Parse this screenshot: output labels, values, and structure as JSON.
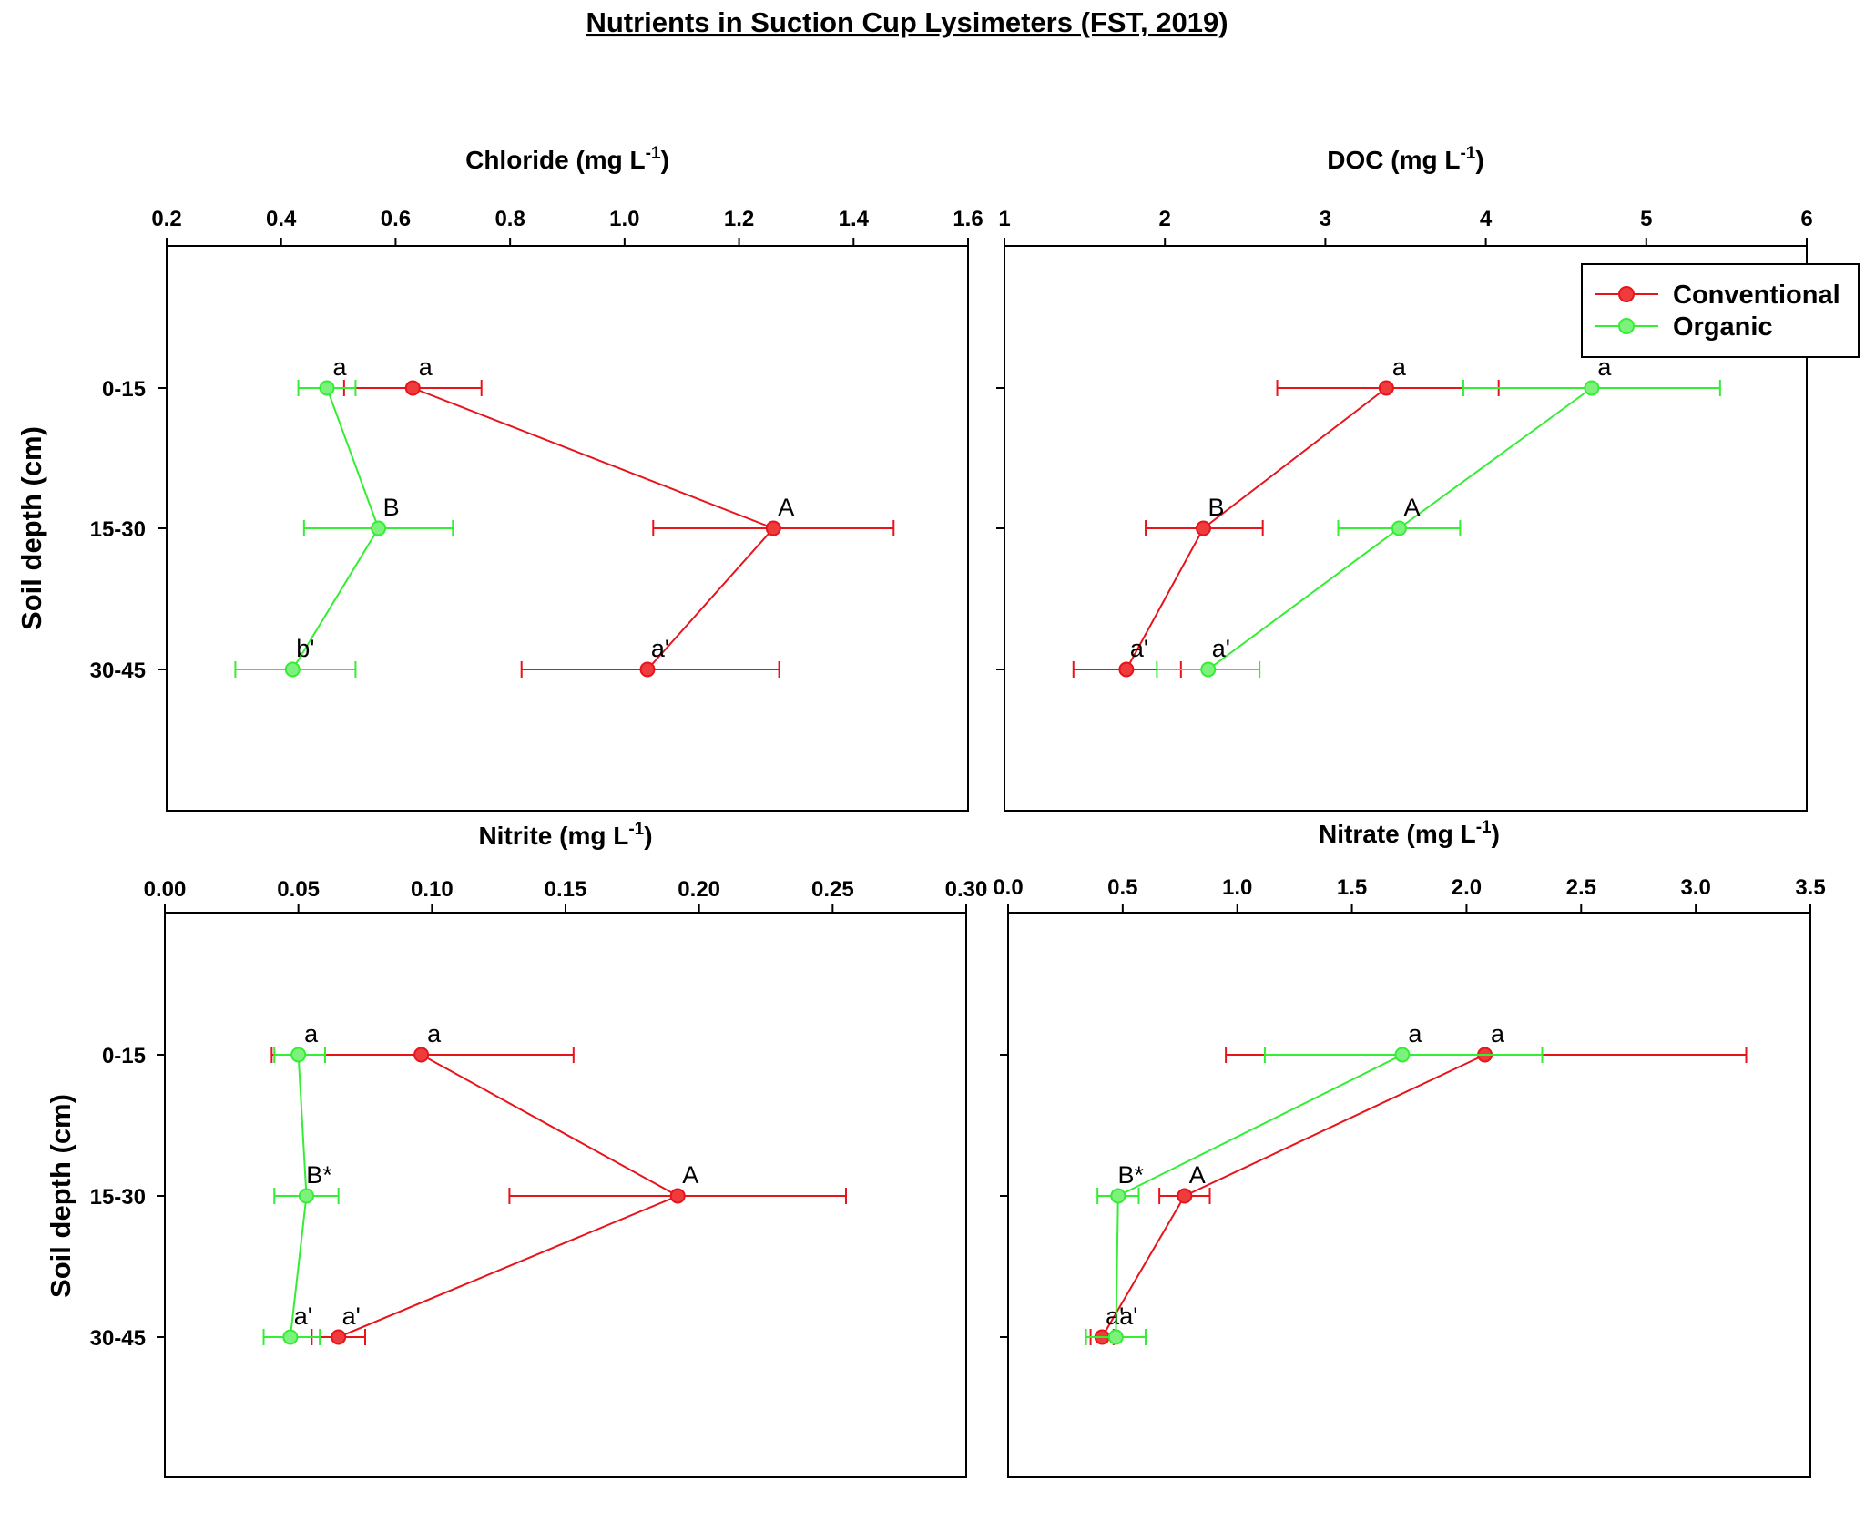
{
  "title": "Nutrients in Suction Cup Lysimeters (FST, 2019)",
  "colors": {
    "conventional": "#e8141c",
    "organic": "#33ee33",
    "conventional_fill": "#ee3b3b",
    "organic_fill": "#7cf27c"
  },
  "legend": {
    "placement": "top-right of DOC panel",
    "entries": [
      "Conventional",
      "Organic"
    ]
  },
  "chart_data": [
    {
      "type": "line",
      "xlabel": "Chloride (mg L-1)",
      "xlabel_main": "Chloride (mg L",
      "xlabel_sup": "-1",
      "xlabel_tail": ")",
      "ylabel": "Soil depth (cm)",
      "categories": [
        "0-15",
        "15-30",
        "30-45"
      ],
      "xlim": [
        0.2,
        1.6
      ],
      "xticks": [
        "0.2",
        "0.4",
        "0.6",
        "0.8",
        "1.0",
        "1.2",
        "1.4",
        "1.6"
      ],
      "series": [
        {
          "name": "Conventional",
          "values": [
            0.63,
            1.26,
            1.04
          ],
          "err_low": [
            0.51,
            1.05,
            0.82
          ],
          "err_high": [
            0.75,
            1.47,
            1.27
          ],
          "labels": [
            "a",
            "A",
            "a'"
          ]
        },
        {
          "name": "Organic",
          "values": [
            0.48,
            0.57,
            0.42
          ],
          "err_low": [
            0.43,
            0.44,
            0.32
          ],
          "err_high": [
            0.53,
            0.7,
            0.53
          ],
          "labels": [
            "a",
            "B",
            "b'"
          ]
        }
      ]
    },
    {
      "type": "line",
      "xlabel": "DOC (mg L-1)",
      "xlabel_main": "DOC (mg L",
      "xlabel_sup": "-1",
      "xlabel_tail": ")",
      "ylabel": "",
      "categories": [
        "0-15",
        "15-30",
        "30-45"
      ],
      "xlim": [
        1,
        6
      ],
      "xticks": [
        "1",
        "2",
        "3",
        "4",
        "5",
        "6"
      ],
      "series": [
        {
          "name": "Conventional",
          "values": [
            3.38,
            2.24,
            1.76
          ],
          "err_low": [
            2.7,
            1.88,
            1.43
          ],
          "err_high": [
            4.08,
            2.61,
            2.1
          ],
          "labels": [
            "a",
            "B",
            "a'"
          ]
        },
        {
          "name": "Organic",
          "values": [
            4.66,
            3.46,
            2.27
          ],
          "err_low": [
            3.86,
            3.08,
            1.95
          ],
          "err_high": [
            5.46,
            3.84,
            2.59
          ],
          "labels": [
            "a",
            "A",
            "a'"
          ]
        }
      ]
    },
    {
      "type": "line",
      "xlabel": "Nitrite (mg L-1)",
      "xlabel_main": "Nitrite (mg L",
      "xlabel_sup": "-1",
      "xlabel_tail": ")",
      "ylabel": "Soil depth (cm)",
      "categories": [
        "0-15",
        "15-30",
        "30-45"
      ],
      "xlim": [
        0.0,
        0.3
      ],
      "xticks": [
        "0.00",
        "0.05",
        "0.10",
        "0.15",
        "0.20",
        "0.25",
        "0.30"
      ],
      "series": [
        {
          "name": "Conventional",
          "values": [
            0.096,
            0.192,
            0.065
          ],
          "err_low": [
            0.04,
            0.129,
            0.055
          ],
          "err_high": [
            0.153,
            0.255,
            0.075
          ],
          "labels": [
            "a",
            "A",
            "a'"
          ]
        },
        {
          "name": "Organic",
          "values": [
            0.05,
            0.053,
            0.047
          ],
          "err_low": [
            0.041,
            0.041,
            0.037
          ],
          "err_high": [
            0.06,
            0.065,
            0.058
          ],
          "labels": [
            "a",
            "B*",
            "a'"
          ]
        }
      ]
    },
    {
      "type": "line",
      "xlabel": "Nitrate (mg L-1)",
      "xlabel_main": "Nitrate (mg L",
      "xlabel_sup": "-1",
      "xlabel_tail": ")",
      "ylabel": "",
      "categories": [
        "0-15",
        "15-30",
        "30-45"
      ],
      "xlim": [
        0.0,
        3.5
      ],
      "xticks": [
        "0.0",
        "0.5",
        "1.0",
        "1.5",
        "2.0",
        "2.5",
        "3.0",
        "3.5"
      ],
      "series": [
        {
          "name": "Conventional",
          "values": [
            2.08,
            0.77,
            0.41
          ],
          "err_low": [
            0.95,
            0.66,
            0.36
          ],
          "err_high": [
            3.22,
            0.88,
            0.46
          ],
          "labels": [
            "a",
            "A",
            "a'"
          ]
        },
        {
          "name": "Organic",
          "values": [
            1.72,
            0.48,
            0.47
          ],
          "err_low": [
            1.12,
            0.39,
            0.34
          ],
          "err_high": [
            2.33,
            0.57,
            0.6
          ],
          "labels": [
            "a",
            "B*",
            "a'"
          ]
        }
      ]
    }
  ]
}
